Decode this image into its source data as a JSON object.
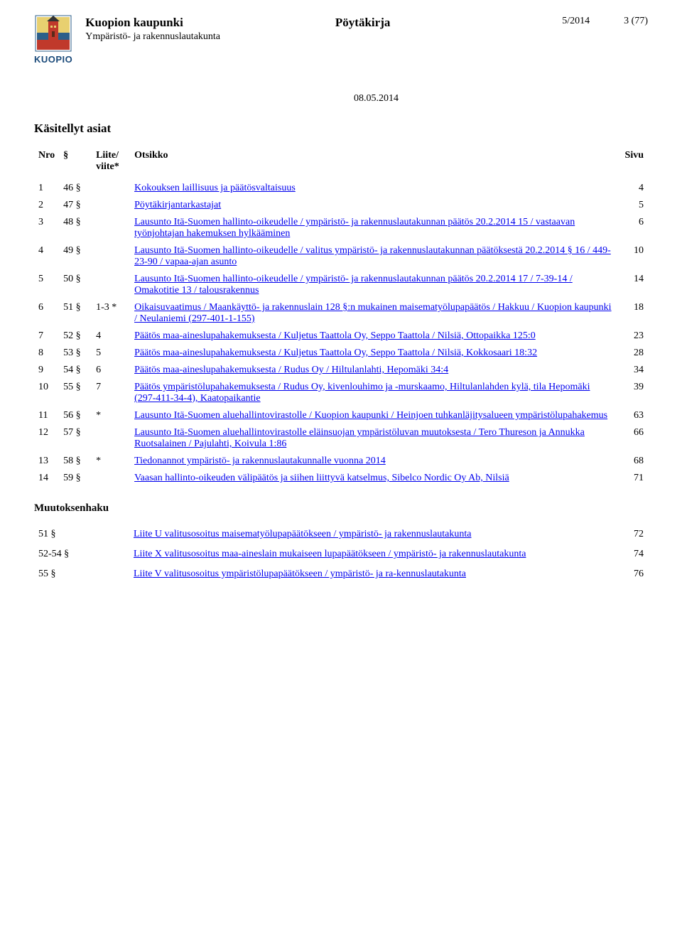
{
  "header": {
    "org_name": "Kuopion kaupunki",
    "board_name": "Ympäristö- ja rakennuslautakunta",
    "doc_type": "Pöytäkirja",
    "doc_number": "5/2014",
    "page_of": "3 (77)",
    "date": "08.05.2014",
    "logo_text": "KUOPIO"
  },
  "section_title": "Käsitellyt asiat",
  "table_headers": {
    "nro": "Nro",
    "section": "§",
    "liite": "Liite/ viite*",
    "otsikko": "Otsikko",
    "sivu": "Sivu"
  },
  "items": [
    {
      "nro": "1",
      "sec": "46 §",
      "liite": "",
      "title": "Kokouksen laillisuus ja päätösvaltaisuus",
      "page": "4"
    },
    {
      "nro": "2",
      "sec": "47 §",
      "liite": "",
      "title": "Pöytäkirjantarkastajat",
      "page": "5"
    },
    {
      "nro": "3",
      "sec": "48 §",
      "liite": "",
      "title": "Lausunto Itä-Suomen hallinto-oikeudelle / ympäristö- ja rakennuslautakunnan päätös 20.2.2014 15 / vastaavan työnjohtajan hakemuksen hylkääminen",
      "page": "6"
    },
    {
      "nro": "4",
      "sec": "49 §",
      "liite": "",
      "title": "Lausunto Itä-Suomen hallinto-oikeudelle / valitus ympäristö- ja rakennuslautakunnan päätöksestä 20.2.2014 § 16 / 449-23-90 / vapaa-ajan asunto",
      "page": "10"
    },
    {
      "nro": "5",
      "sec": "50 §",
      "liite": "",
      "title": "Lausunto Itä-Suomen hallinto-oikeudelle / ympäristö- ja rakennuslautakunnan päätös 20.2.2014 17 / 7-39-14 / Omakotitie 13 / talousrakennus",
      "page": "14"
    },
    {
      "nro": "6",
      "sec": "51 §",
      "liite": "1-3 *",
      "title": "Oikaisuvaatimus / Maankäyttö- ja rakennuslain 128 §:n mukainen maisematyölupapäätös / Hakkuu / Kuopion kaupunki / Neulaniemi (297-401-1-155)",
      "page": "18"
    },
    {
      "nro": "7",
      "sec": "52 §",
      "liite": "4",
      "title": "Päätös maa-aineslupahakemuksesta / Kuljetus Taattola Oy, Seppo Taattola / Nilsiä, Ottopaikka 125:0",
      "page": "23"
    },
    {
      "nro": "8",
      "sec": "53 §",
      "liite": "5",
      "title": "Päätös maa-aineslupahakemuksesta / Kuljetus Taattola Oy, Seppo Taattola / Nilsiä, Kokkosaari 18:32",
      "page": "28"
    },
    {
      "nro": "9",
      "sec": "54 §",
      "liite": "6",
      "title": "Päätös maa-aineslupahakemuksesta / Rudus Oy / Hiltulanlahti, Hepomäki 34:4",
      "page": "34"
    },
    {
      "nro": "10",
      "sec": "55 §",
      "liite": "7",
      "title": "Päätös ympäristölupahakemuksesta / Rudus Oy, kivenlouhimo ja -murskaamo, Hiltulanlahden kylä, tila Hepomäki (297-411-34-4), Kaatopaikantie",
      "page": "39"
    },
    {
      "nro": "11",
      "sec": "56 §",
      "liite": "*",
      "title": "Lausunto Itä-Suomen aluehallintovirastolle / Kuopion kaupunki / Heinjoen tuhkanläjitysalueen ympäristölupahakemus",
      "page": "63"
    },
    {
      "nro": "12",
      "sec": "57 §",
      "liite": "",
      "title": "Lausunto Itä-Suomen aluehallintovirastolle eläinsuojan ympäristöluvan muutoksesta / Tero Thureson ja Annukka Ruotsalainen / Pajulahti, Koivula 1:86",
      "page": "66"
    },
    {
      "nro": "13",
      "sec": "58 §",
      "liite": "*",
      "title": "Tiedonannot ympäristö- ja rakennuslautakunnalle vuonna 2014",
      "page": "68"
    },
    {
      "nro": "14",
      "sec": "59 §",
      "liite": "",
      "title": "Vaasan hallinto-oikeuden välipäätös ja siihen liittyvä katselmus, Sibelco Nordic Oy Ab, Nilsiä",
      "page": "71"
    }
  ],
  "appeals_title": "Muutoksenhaku",
  "appeals": [
    {
      "sec": "51 §",
      "title": "Liite U valitusosoitus maisematyölupapäätökseen / ympäristö- ja rakennuslautakunta",
      "page": "72"
    },
    {
      "sec": "52-54 §",
      "title": "Liite X valitusosoitus maa-aineslain mukaiseen lupapäätökseen / ympäristö- ja rakennuslautakunta",
      "page": "74"
    },
    {
      "sec": "55 §",
      "title": "Liite V valitusosoitus ympäristölupapäätökseen / ympäristö- ja ra-kennuslautakunta",
      "page": "76"
    }
  ],
  "colors": {
    "link": "#0000ee",
    "logo_text": "#1a4a7a",
    "logo_building": "#c0392b",
    "logo_sky": "#e8d070",
    "logo_band": "#2c5f8a"
  }
}
